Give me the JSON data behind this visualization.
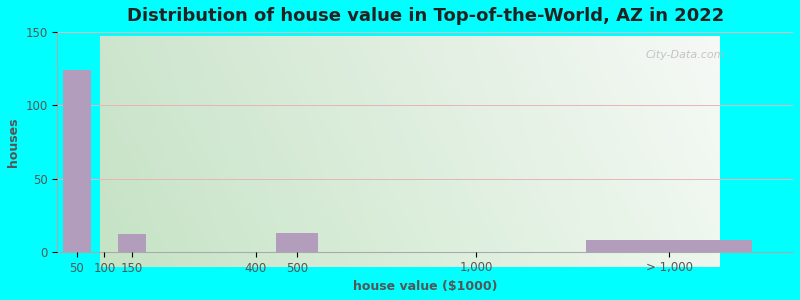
{
  "title": "Distribution of house value in Top-of-the-World, AZ in 2022",
  "xlabel": "house value ($1000)",
  "ylabel": "houses",
  "bar_labels": [
    "50",
    "100",
    "150",
    "400",
    "500",
    "1,000",
    "> 1,000"
  ],
  "values": [
    124,
    0,
    12,
    0,
    13,
    0,
    8
  ],
  "bar_color": "#b39dbd",
  "ylim": [
    0,
    150
  ],
  "yticks": [
    0,
    50,
    100,
    150
  ],
  "outer_bg": "#00ffff",
  "plot_bg_left": "#c5e3c5",
  "plot_bg_right": "#e8f5e8",
  "title_fontsize": 13,
  "label_fontsize": 9,
  "tick_fontsize": 8.5,
  "watermark": "City-Data.com",
  "bar_positions": [
    0.5,
    1.5,
    2.5,
    7.0,
    8.5,
    15.0,
    22.0
  ],
  "bar_widths": [
    1.0,
    1.0,
    1.0,
    1.5,
    1.5,
    1.5,
    6.0
  ],
  "xlim": [
    -0.2,
    26.5
  ]
}
